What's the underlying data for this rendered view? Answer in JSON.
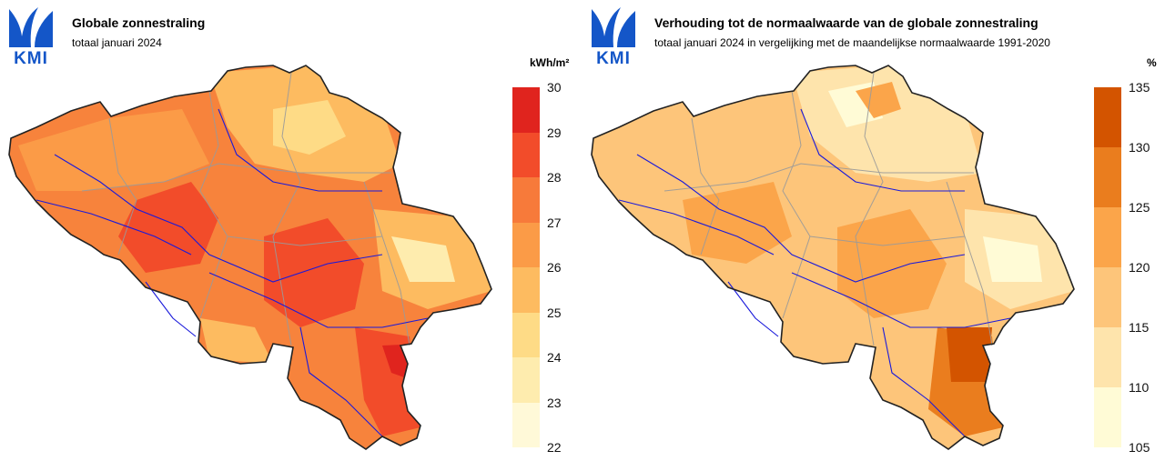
{
  "logo_text": "KMI",
  "panels": [
    {
      "title": "Globale zonnestraling",
      "subtitle": "totaal januari 2024",
      "unit": "kWh/m²",
      "legend": {
        "ticks": [
          "30",
          "29",
          "28",
          "27",
          "26",
          "25",
          "24",
          "23",
          "22"
        ],
        "colors": [
          "#e0241e",
          "#f24c2a",
          "#f77a3a",
          "#fb9b47",
          "#fdbb60",
          "#fedb86",
          "#feecae",
          "#fff9d8"
        ]
      },
      "map_colors": {
        "base": "#f7833c",
        "regions": [
          "#fdbb60",
          "#fedb86",
          "#fb9b47",
          "#f24c2a",
          "#e0241e",
          "#feecae"
        ]
      }
    },
    {
      "title": "Verhouding tot de normaalwaarde van de globale zonnestraling",
      "subtitle": "totaal januari 2024 in vergelijking met de maandelijkse normaalwaarde 1991-2020",
      "unit": "%",
      "legend": {
        "ticks": [
          "135",
          "130",
          "125",
          "120",
          "115",
          "110",
          "105"
        ],
        "colors": [
          "#d35400",
          "#ea7d1e",
          "#fba54a",
          "#fdc57a",
          "#fee4ac",
          "#fffbd6"
        ]
      },
      "map_colors": {
        "base": "#fdc57a",
        "regions": [
          "#fee4ac",
          "#fba54a",
          "#ea7d1e",
          "#d35400",
          "#fffbd6"
        ]
      }
    }
  ]
}
